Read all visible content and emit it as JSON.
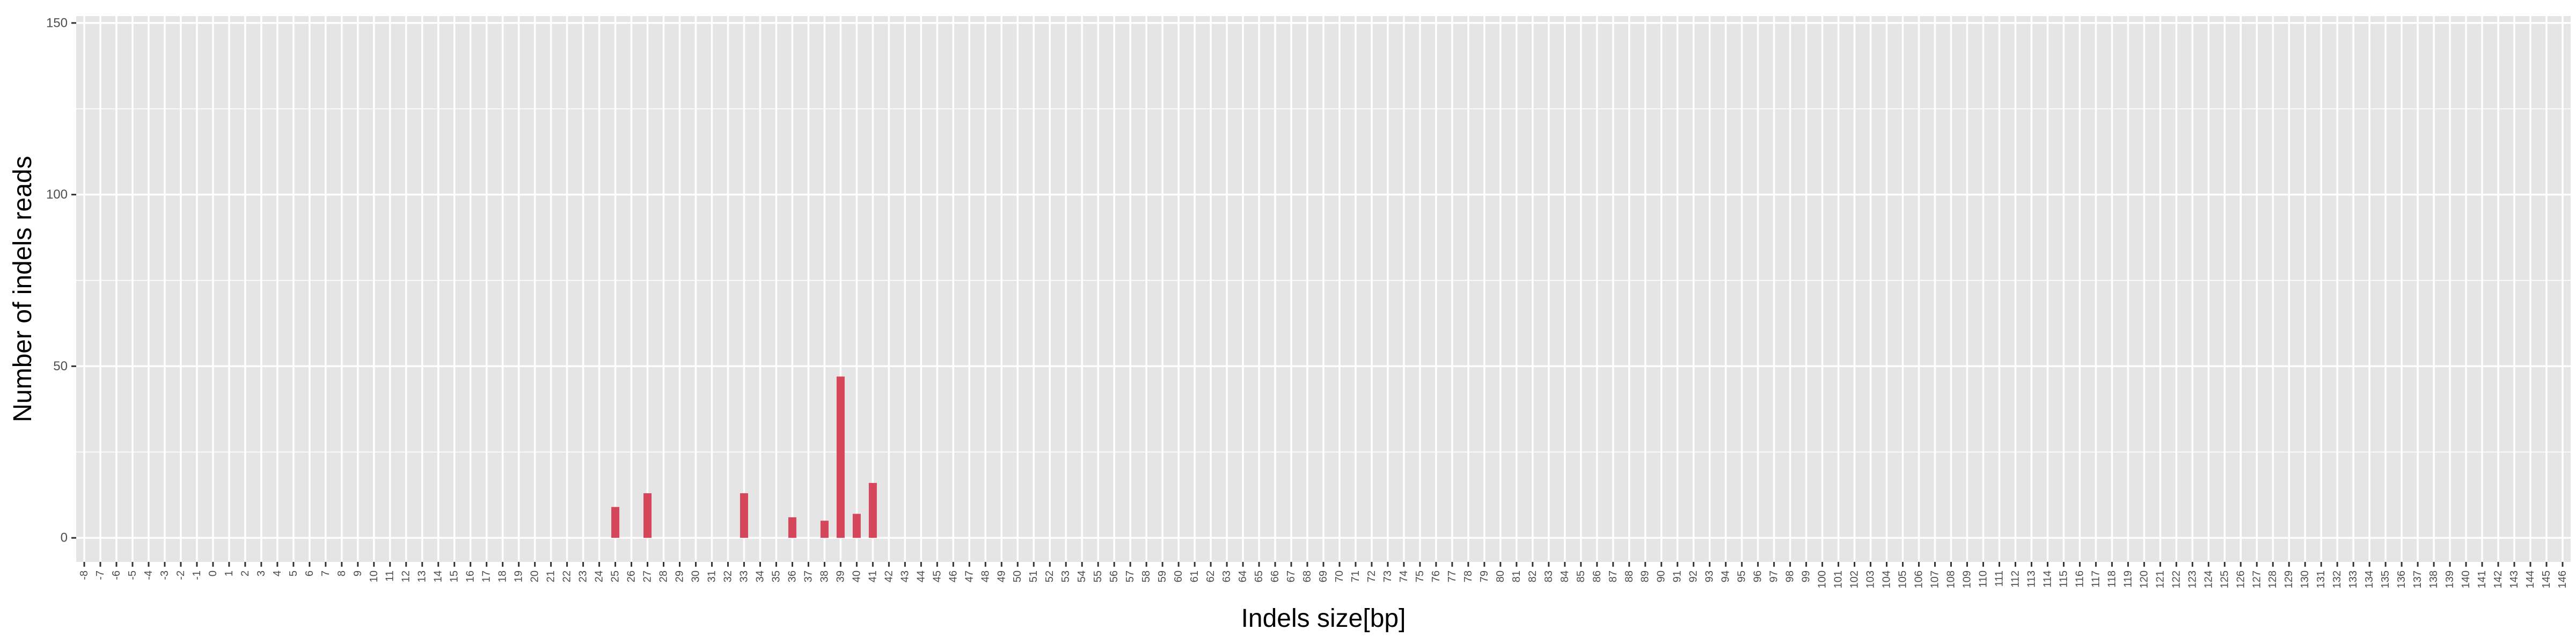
{
  "chart_data": {
    "type": "bar",
    "title": "",
    "xlabel": "Indels size[bp]",
    "ylabel": "Number of indels reads",
    "categories": [
      "-8",
      "-7",
      "-6",
      "-5",
      "-4",
      "-3",
      "-2",
      "-1",
      "0",
      "1",
      "2",
      "3",
      "4",
      "5",
      "6",
      "7",
      "8",
      "9",
      "10",
      "11",
      "12",
      "13",
      "14",
      "15",
      "16",
      "17",
      "18",
      "19",
      "20",
      "21",
      "22",
      "23",
      "24",
      "25",
      "26",
      "27",
      "28",
      "29",
      "30",
      "31",
      "32",
      "33",
      "34",
      "35",
      "36",
      "37",
      "38",
      "39",
      "40",
      "41",
      "42",
      "43",
      "44",
      "45",
      "46",
      "47",
      "48",
      "49",
      "50",
      "51",
      "52",
      "53",
      "54",
      "55",
      "56",
      "57",
      "58",
      "59",
      "60",
      "61",
      "62",
      "63",
      "64",
      "65",
      "66",
      "67",
      "68",
      "69",
      "70",
      "71",
      "72",
      "73",
      "74",
      "75",
      "76",
      "77",
      "78",
      "79",
      "80",
      "81",
      "82",
      "83",
      "84",
      "85",
      "86",
      "87",
      "88",
      "89",
      "90",
      "91",
      "92",
      "93",
      "94",
      "95",
      "96",
      "97",
      "98",
      "99",
      "100",
      "101",
      "102",
      "103",
      "104",
      "105",
      "106",
      "107",
      "108",
      "109",
      "110",
      "111",
      "112",
      "113",
      "114",
      "115",
      "116",
      "117",
      "118",
      "119",
      "120",
      "121",
      "122",
      "123",
      "124",
      "125",
      "126",
      "127",
      "128",
      "129",
      "130",
      "131",
      "132",
      "133",
      "134",
      "135",
      "136",
      "137",
      "138",
      "139",
      "140",
      "141",
      "142",
      "143",
      "144",
      "145",
      "146"
    ],
    "values": [
      0,
      0,
      0,
      0,
      0,
      0,
      0,
      0,
      0,
      0,
      0,
      0,
      0,
      0,
      0,
      0,
      0,
      0,
      0,
      0,
      0,
      0,
      0,
      0,
      0,
      0,
      0,
      0,
      0,
      0,
      0,
      0,
      0,
      9,
      0,
      13,
      0,
      0,
      0,
      0,
      0,
      13,
      0,
      0,
      6,
      0,
      5,
      47,
      7,
      16,
      0,
      0,
      0,
      0,
      0,
      0,
      0,
      0,
      0,
      0,
      0,
      0,
      0,
      0,
      0,
      0,
      0,
      0,
      0,
      0,
      0,
      0,
      0,
      0,
      0,
      0,
      0,
      0,
      0,
      0,
      0,
      0,
      0,
      0,
      0,
      0,
      0,
      0,
      0,
      0,
      0,
      0,
      0,
      0,
      0,
      0,
      0,
      0,
      0,
      0,
      0,
      0,
      0,
      0,
      0,
      0,
      0,
      0,
      0,
      0,
      0,
      0,
      0,
      0,
      0,
      0,
      0,
      0,
      0,
      0,
      0,
      0,
      0,
      0,
      0,
      0,
      0,
      0,
      0,
      0,
      0,
      0,
      0,
      0,
      0,
      0,
      0,
      0,
      0,
      0,
      0,
      0,
      0,
      0,
      0,
      0,
      0,
      0,
      0,
      0,
      0,
      0,
      0,
      0,
      0
    ],
    "ylim": [
      -7,
      152
    ],
    "yticks": [
      0,
      50,
      100,
      150
    ],
    "yticklabels": [
      "0",
      "50",
      "100",
      "150"
    ],
    "grid": true,
    "legend": "none",
    "colors": {
      "bar": "#d6465a",
      "panel": "#e5e5e5",
      "grid": "#ffffff",
      "tick_text": "#4d4d4d",
      "axis_title": "#000000"
    }
  }
}
